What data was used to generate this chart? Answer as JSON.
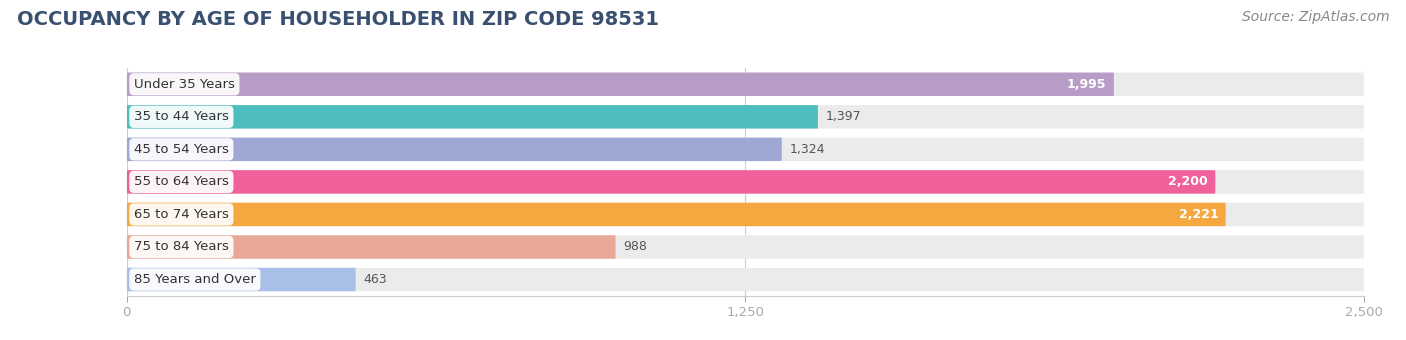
{
  "title": "OCCUPANCY BY AGE OF HOUSEHOLDER IN ZIP CODE 98531",
  "source": "Source: ZipAtlas.com",
  "categories": [
    "Under 35 Years",
    "35 to 44 Years",
    "45 to 54 Years",
    "55 to 64 Years",
    "65 to 74 Years",
    "75 to 84 Years",
    "85 Years and Over"
  ],
  "values": [
    1995,
    1397,
    1324,
    2200,
    2221,
    988,
    463
  ],
  "bar_colors": [
    "#b89cc8",
    "#4dbdbe",
    "#9fa8d4",
    "#f0609a",
    "#f5a840",
    "#e8a898",
    "#a8c0e8"
  ],
  "bar_bg_colors": [
    "#ebebeb",
    "#ebebeb",
    "#ebebeb",
    "#ebebeb",
    "#ebebeb",
    "#ebebeb",
    "#ebebeb"
  ],
  "xlim": [
    0,
    2500
  ],
  "xticks": [
    0,
    1250,
    2500
  ],
  "value_color_inside": [
    "white",
    "black",
    "black",
    "white",
    "white",
    "black",
    "black"
  ],
  "title_fontsize": 14,
  "source_fontsize": 10,
  "bar_height": 0.72,
  "background_color": "#ffffff",
  "title_color": "#3a5070",
  "source_color": "#888888"
}
